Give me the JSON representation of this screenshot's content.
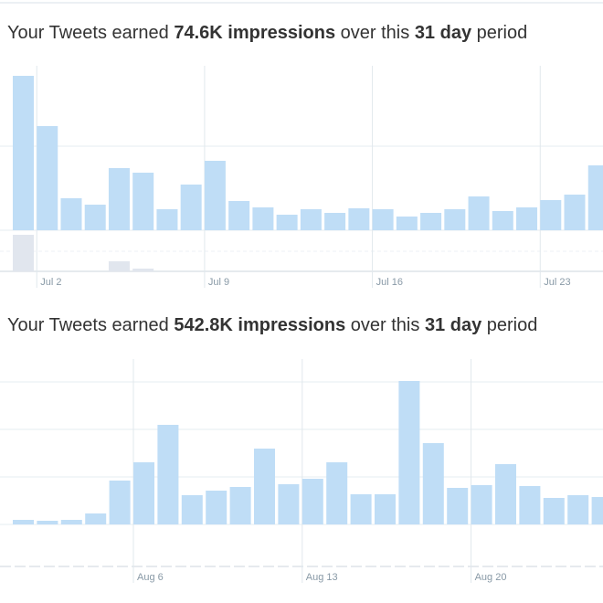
{
  "chart_data": [
    {
      "type": "bar",
      "title_parts": [
        "Your Tweets earned ",
        "74.6K impressions",
        " over this ",
        "31 day",
        " period"
      ],
      "categories": [
        null,
        "Jul 2",
        null,
        null,
        null,
        null,
        null,
        null,
        "Jul 9",
        null,
        null,
        null,
        null,
        null,
        null,
        "Jul 16",
        null,
        null,
        null,
        null,
        null,
        null,
        "Jul 23",
        null,
        null
      ],
      "values": [
        169,
        114,
        35,
        28,
        68,
        63,
        23,
        50,
        76,
        32,
        25,
        17,
        23,
        19,
        24,
        23,
        15,
        19,
        23,
        37,
        21,
        25,
        33,
        39,
        71
      ],
      "secondary_values": [
        40,
        0,
        0,
        0,
        11,
        3,
        0,
        0,
        0,
        0,
        0,
        0,
        0,
        0,
        0,
        0,
        0,
        0,
        0,
        0,
        0,
        0,
        0,
        0,
        0
      ],
      "secondary_ylim": [
        0,
        45
      ],
      "color": "#bfddf6",
      "secondary_color": "#e1e6ee",
      "ylim": [
        0,
        180
      ],
      "yticks": [
        0,
        92
      ],
      "grid": true
    },
    {
      "type": "bar",
      "title_parts": [
        "Your Tweets earned ",
        "542.8K impressions",
        " over this ",
        "31 day",
        " period"
      ],
      "categories": [
        null,
        null,
        null,
        null,
        null,
        "Aug 6",
        null,
        null,
        null,
        null,
        null,
        null,
        "Aug 13",
        null,
        null,
        null,
        null,
        null,
        null,
        "Aug 20",
        null,
        null,
        null,
        null,
        null
      ],
      "values": [
        5,
        4,
        5,
        12,
        48,
        68,
        109,
        32,
        37,
        41,
        83,
        44,
        50,
        68,
        33,
        33,
        157,
        89,
        40,
        43,
        66,
        42,
        29,
        32,
        30
      ],
      "color": "#bfddf6",
      "ylim": [
        0,
        181
      ],
      "yticks": [
        0,
        52,
        104,
        156
      ],
      "grid": true
    }
  ]
}
